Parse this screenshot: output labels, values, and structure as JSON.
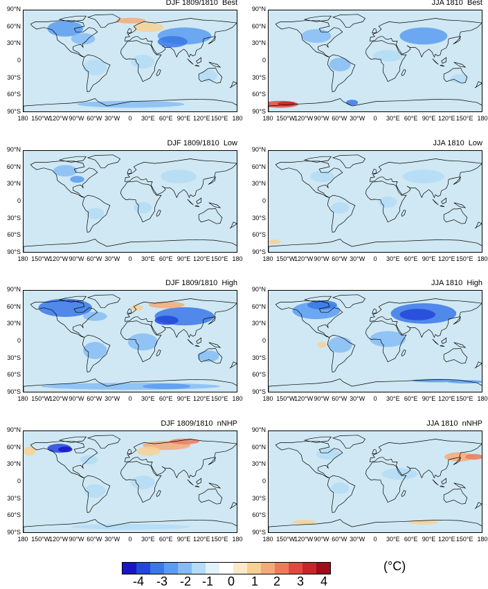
{
  "panels": [
    {
      "title": "DJF 1809/1810  Best"
    },
    {
      "title": "JJA 1810  Best"
    },
    {
      "title": "DJF 1809/1810  Low"
    },
    {
      "title": "JJA 1810  Low"
    },
    {
      "title": "DJF 1809/1810  High"
    },
    {
      "title": "JJA 1810  High"
    },
    {
      "title": "DJF 1809/1810  nNHP"
    },
    {
      "title": "JJA 1810  nNHP"
    }
  ],
  "lat_labels": [
    "90°N",
    "60°N",
    "30°N",
    "0",
    "30°S",
    "60°S",
    "90°S"
  ],
  "lon_labels": [
    "180",
    "150°W",
    "120°W",
    "90°W",
    "60°W",
    "30°W",
    "0",
    "30°E",
    "60°E",
    "90°E",
    "120°E",
    "150°E",
    "180"
  ],
  "colorbar": {
    "labels": [
      "-4",
      "-3",
      "-2",
      "-1",
      "0",
      "1",
      "2",
      "3",
      "4"
    ],
    "units": "(°C)",
    "colors": [
      "#1a14c8",
      "#2346dc",
      "#3a78e6",
      "#5b9cf0",
      "#86bcf4",
      "#b4dcf6",
      "#e2f2f8",
      "#ffffff",
      "#fbe9c8",
      "#f7d193",
      "#f4aa78",
      "#ee7a5a",
      "#e2493e",
      "#c8262a",
      "#9c0e1a"
    ]
  },
  "map_colors": {
    "ocean": "#cfe8f3",
    "land": "#dcefef",
    "coast": "#000000"
  }
}
